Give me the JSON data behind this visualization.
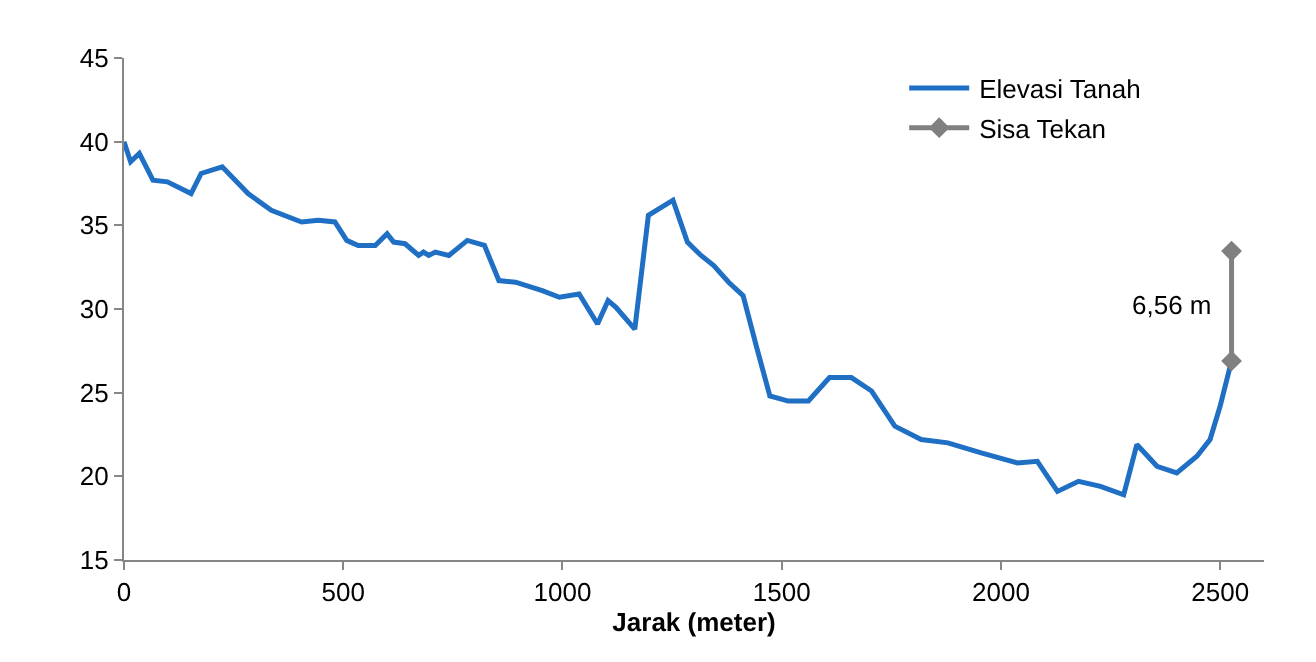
{
  "chart_data": {
    "type": "line",
    "xlabel": "Jarak (meter)",
    "xlim": [
      0,
      2600
    ],
    "xticks": [
      0,
      500,
      1000,
      1500,
      2000,
      2500
    ],
    "ylim": [
      15,
      45
    ],
    "yticks": [
      15,
      20,
      25,
      30,
      35,
      40,
      45
    ],
    "grid": false,
    "legend": "top right",
    "series": [
      {
        "name": "Elevasi Tanah",
        "color": "#1f6fc4",
        "marker": "none",
        "x": [
          0,
          15,
          35,
          66,
          99,
          153,
          176,
          224,
          283,
          336,
          405,
          443,
          481,
          508,
          534,
          573,
          600,
          615,
          641,
          672,
          683,
          695,
          710,
          741,
          783,
          822,
          855,
          893,
          954,
          993,
          1038,
          1080,
          1104,
          1122,
          1165,
          1196,
          1252,
          1285,
          1316,
          1345,
          1379,
          1412,
          1442,
          1473,
          1515,
          1561,
          1609,
          1659,
          1705,
          1758,
          1818,
          1879,
          1955,
          2038,
          2083,
          2129,
          2177,
          2227,
          2280,
          2310,
          2356,
          2401,
          2447,
          2477,
          2500,
          2526
        ],
        "values": [
          40,
          38.8,
          39.3,
          37.7,
          37.6,
          36.9,
          38.1,
          38.5,
          36.9,
          35.9,
          35.2,
          35.3,
          35.2,
          34.1,
          33.8,
          33.8,
          34.5,
          34,
          33.9,
          33.2,
          33.4,
          33.2,
          33.4,
          33.2,
          34.1,
          33.8,
          31.7,
          31.6,
          31.1,
          30.7,
          30.9,
          29.1,
          30.5,
          30.1,
          28.8,
          35.6,
          36.5,
          34,
          33.2,
          32.6,
          31.6,
          30.8,
          27.8,
          24.8,
          24.5,
          24.5,
          25.9,
          25.9,
          25.1,
          23,
          22.2,
          22,
          21.4,
          20.8,
          20.9,
          19.1,
          19.7,
          19.4,
          18.9,
          21.9,
          20.6,
          20.2,
          21.2,
          22.2,
          24.2,
          26.9
        ]
      },
      {
        "name": "Sisa Tekan",
        "color": "#808080",
        "marker": "diamond",
        "x": [
          2526,
          2526
        ],
        "values": [
          26.9,
          33.46
        ]
      }
    ],
    "annotations": [
      {
        "text": "6,56 m",
        "x": 2526,
        "y": 30.2
      }
    ]
  }
}
